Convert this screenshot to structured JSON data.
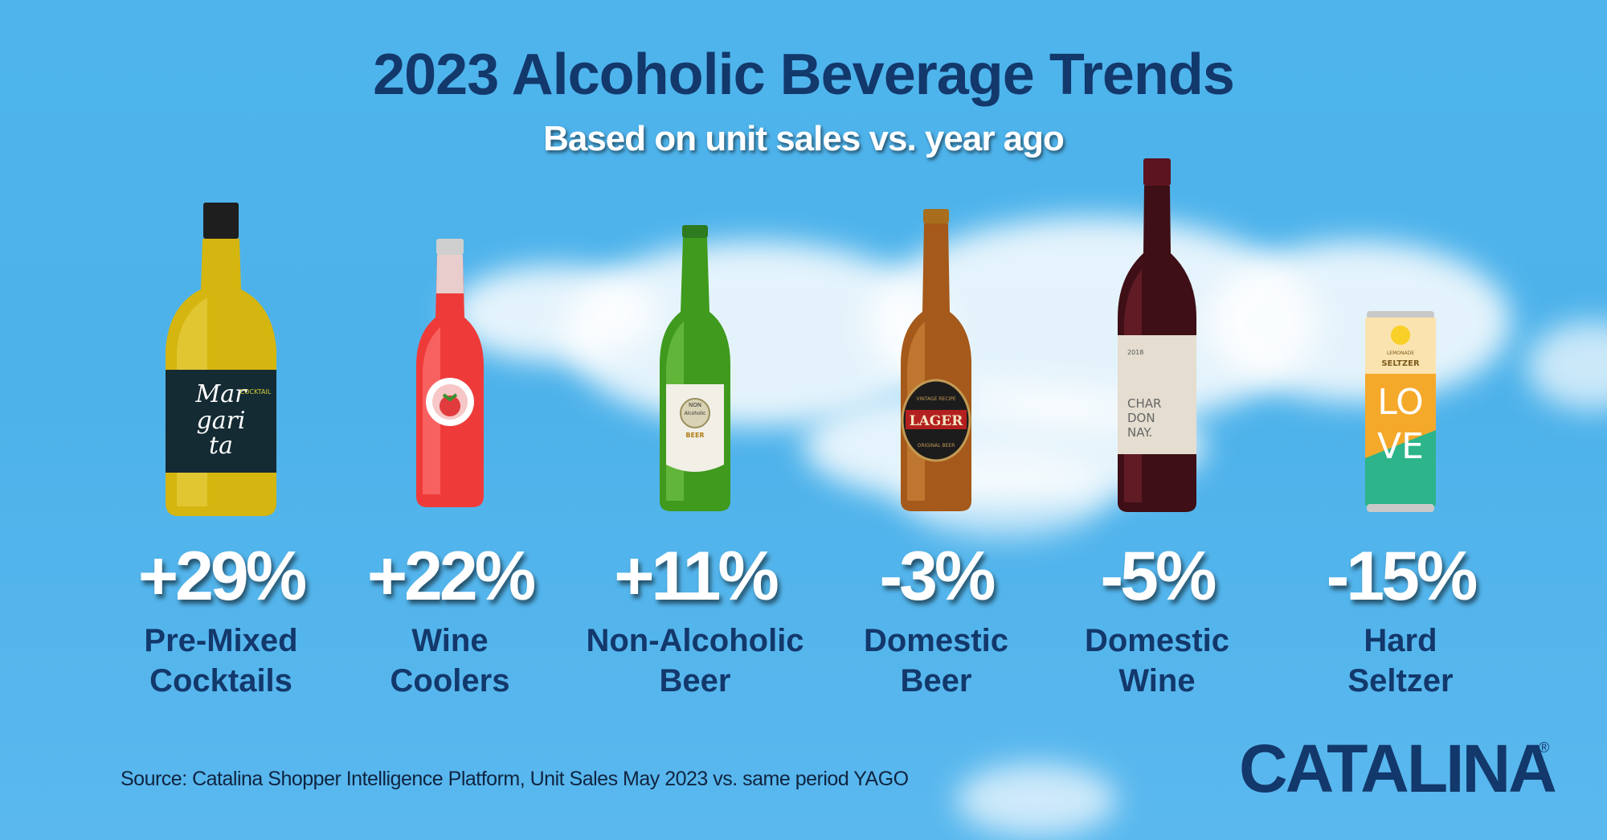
{
  "header": {
    "title": "2023 Alcoholic Beverage Trends",
    "subtitle": "Based on unit sales vs. year ago"
  },
  "items": [
    {
      "change": "+29%",
      "line1": "Pre-Mixed",
      "line2": "Cocktails",
      "label_text": [
        "Mar",
        "gari",
        "ta",
        "COCKTAIL"
      ]
    },
    {
      "change": "+22%",
      "line1": "Wine",
      "line2": "Coolers"
    },
    {
      "change": "+11%",
      "line1": "Non-Alcoholic",
      "line2": "Beer",
      "label_text": [
        "NON",
        "Alcoholic",
        "BEER"
      ]
    },
    {
      "change": "-3%",
      "line1": "Domestic",
      "line2": "Beer",
      "label_text": [
        "LAGER",
        "VINTAGE RECIPE",
        "ORIGINAL BEER"
      ]
    },
    {
      "change": "-5%",
      "line1": "Domestic",
      "line2": "Wine",
      "label_text": [
        "2018",
        "CHAR",
        "DON",
        "NAY."
      ]
    },
    {
      "change": "-15%",
      "line1": "Hard",
      "line2": "Seltzer",
      "label_text": [
        "LEMONADE",
        "SELTZER",
        "LO",
        "VE"
      ]
    }
  ],
  "footer": {
    "source": "Source: Catalina Shopper Intelligence Platform, Unit Sales May 2023 vs. same period YAGO",
    "logo": "CATALINA",
    "registered": "®"
  },
  "colors": {
    "navy": "#13386b",
    "sky": "#4fb4ec",
    "white": "#ffffff"
  }
}
